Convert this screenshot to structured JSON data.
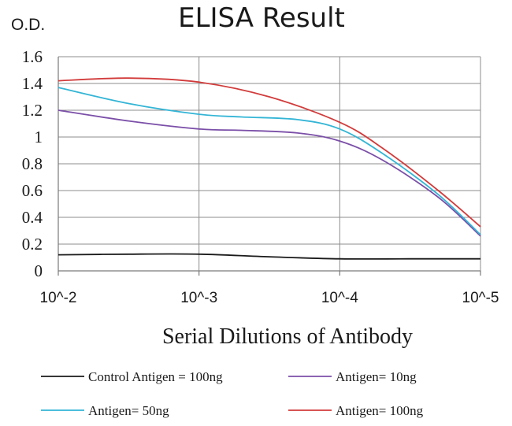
{
  "chart_data": {
    "type": "line",
    "title": "ELISA Result",
    "ylabel": "O.D.",
    "xlabel": "Serial Dilutions  of Antibody",
    "ylim": [
      0,
      1.6
    ],
    "yticks": [
      0,
      0.2,
      0.4,
      0.6,
      0.8,
      1,
      1.2,
      1.4,
      1.6
    ],
    "ytick_labels": [
      "0",
      "0.2",
      "0.4",
      "0.6",
      "0.8",
      "1",
      "1.2",
      "1.4",
      "1.6"
    ],
    "x_exponents": [
      -2,
      -3,
      -4,
      -5
    ],
    "xtick_labels": [
      "10^-2",
      "10^-3",
      "10^-4",
      "10^-5"
    ],
    "grid": true,
    "legend_position": "bottom",
    "series": [
      {
        "name": "Control Antigen = 100ng",
        "color": "#1a1a1a",
        "points": [
          [
            -2,
            0.12
          ],
          [
            -2.5,
            0.125
          ],
          [
            -3,
            0.125
          ],
          [
            -3.5,
            0.105
          ],
          [
            -4,
            0.09
          ],
          [
            -4.5,
            0.09
          ],
          [
            -5,
            0.09
          ]
        ]
      },
      {
        "name": "Antigen= 10ng",
        "color": "#7b4fa8",
        "points": [
          [
            -2,
            1.2
          ],
          [
            -2.5,
            1.12
          ],
          [
            -3,
            1.06
          ],
          [
            -3.3,
            1.05
          ],
          [
            -3.7,
            1.03
          ],
          [
            -4,
            0.97
          ],
          [
            -4.3,
            0.83
          ],
          [
            -4.7,
            0.55
          ],
          [
            -5,
            0.26
          ]
        ]
      },
      {
        "name": "Antigen= 50ng",
        "color": "#33b5d6",
        "points": [
          [
            -2,
            1.37
          ],
          [
            -2.5,
            1.25
          ],
          [
            -3,
            1.17
          ],
          [
            -3.3,
            1.15
          ],
          [
            -3.7,
            1.13
          ],
          [
            -4,
            1.06
          ],
          [
            -4.3,
            0.88
          ],
          [
            -4.7,
            0.57
          ],
          [
            -5,
            0.27
          ]
        ]
      },
      {
        "name": "Antigen= 100ng",
        "color": "#d23b3b",
        "points": [
          [
            -2,
            1.42
          ],
          [
            -2.5,
            1.44
          ],
          [
            -3,
            1.41
          ],
          [
            -3.5,
            1.3
          ],
          [
            -4,
            1.11
          ],
          [
            -4.3,
            0.92
          ],
          [
            -4.7,
            0.6
          ],
          [
            -5,
            0.33
          ]
        ]
      }
    ]
  }
}
